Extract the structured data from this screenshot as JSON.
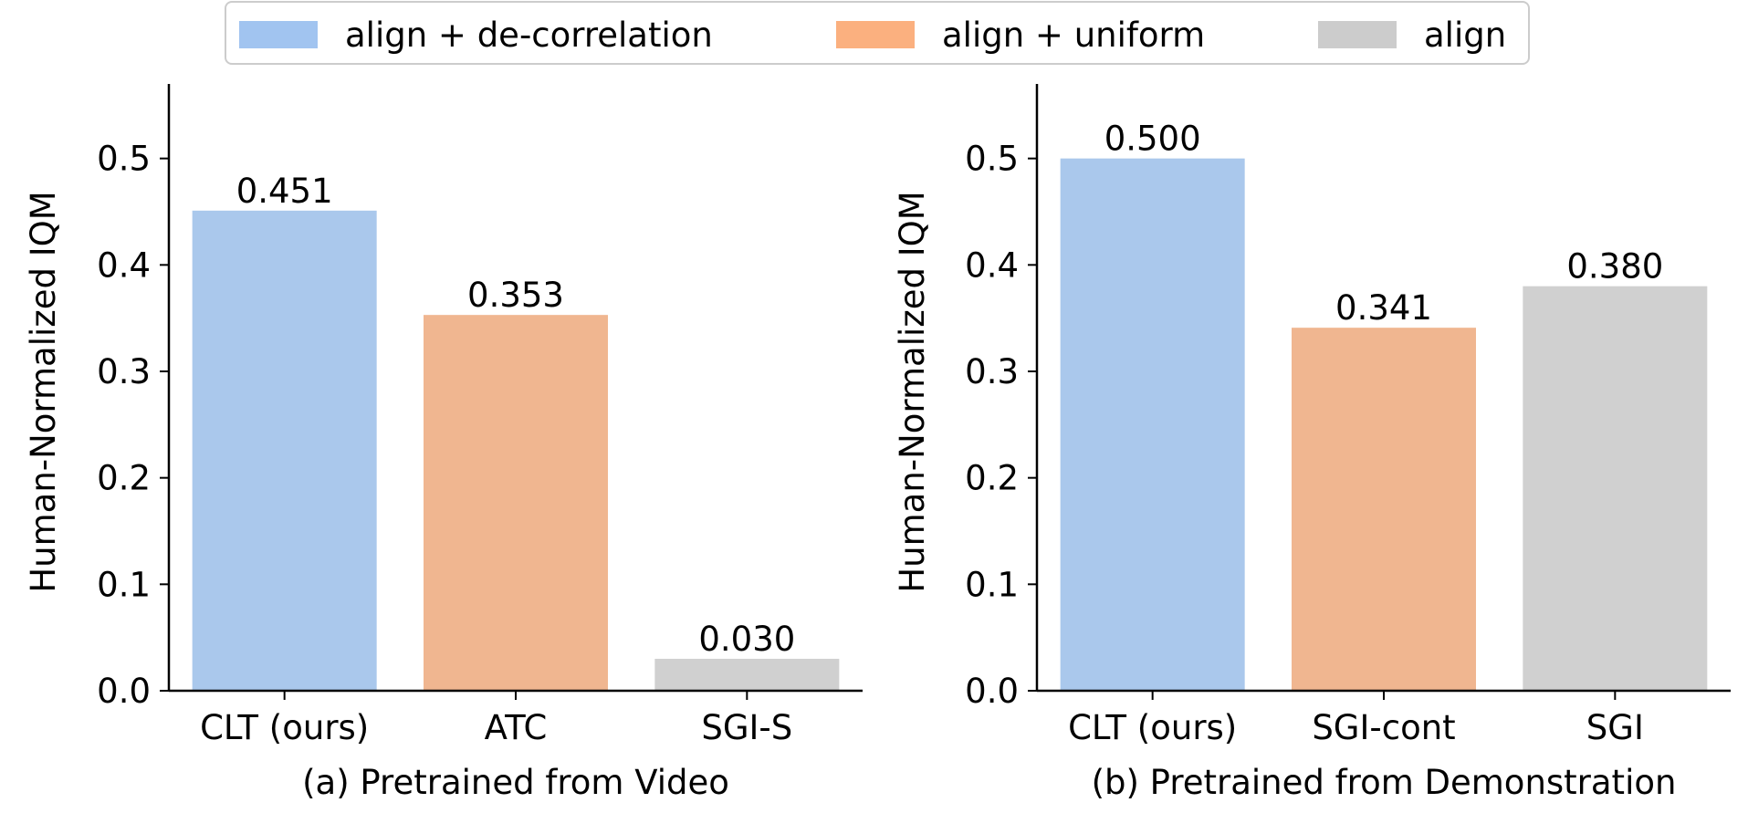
{
  "legend": {
    "items": [
      {
        "label": "align + de-correlation",
        "color": "#a1c4f0"
      },
      {
        "label": "align + uniform",
        "color": "#fbb07f"
      },
      {
        "label": "align",
        "color": "#cccccc"
      }
    ]
  },
  "chart_data": [
    {
      "type": "bar",
      "title": "",
      "xlabel": "(a) Pretrained from Video",
      "ylabel": "Human-Normalized IQM",
      "ylim": [
        0,
        0.57
      ],
      "yticks": [
        "0.0",
        "0.1",
        "0.2",
        "0.3",
        "0.4",
        "0.5"
      ],
      "categories": [
        "CLT (ours)",
        "ATC",
        "SGI-S"
      ],
      "values": [
        0.451,
        0.353,
        0.03
      ],
      "value_labels": [
        "0.451",
        "0.353",
        "0.030"
      ],
      "colors": [
        "#aac8ec",
        "#f0b690",
        "#d0d0d0"
      ]
    },
    {
      "type": "bar",
      "title": "",
      "xlabel": "(b) Pretrained from Demonstration",
      "ylabel": "Human-Normalized IQM",
      "ylim": [
        0,
        0.57
      ],
      "yticks": [
        "0.0",
        "0.1",
        "0.2",
        "0.3",
        "0.4",
        "0.5"
      ],
      "categories": [
        "CLT (ours)",
        "SGI-cont",
        "SGI"
      ],
      "values": [
        0.5,
        0.341,
        0.38
      ],
      "value_labels": [
        "0.500",
        "0.341",
        "0.380"
      ],
      "colors": [
        "#aac8ec",
        "#f0b690",
        "#d0d0d0"
      ]
    }
  ]
}
